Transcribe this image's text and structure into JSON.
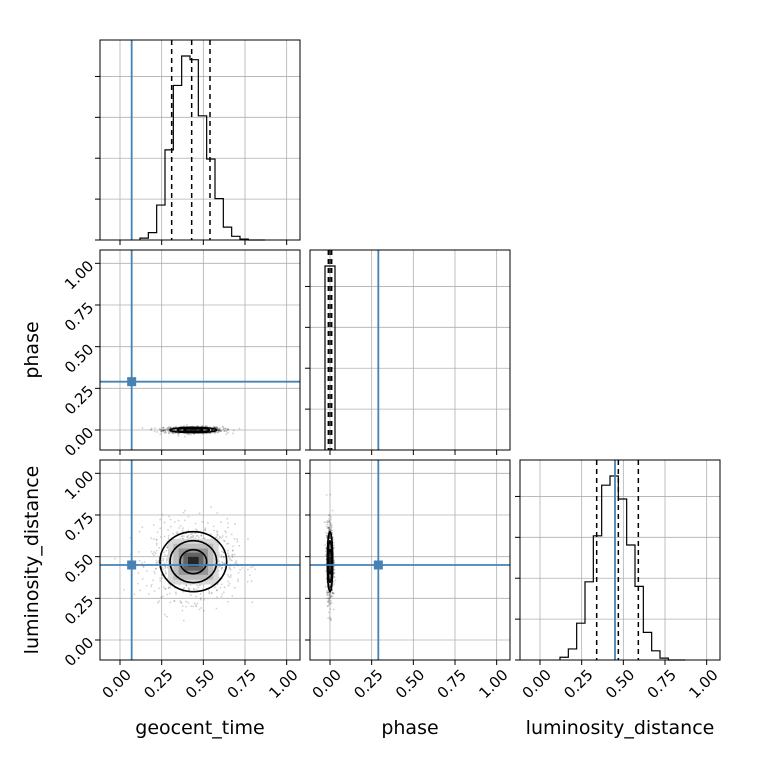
{
  "chart_data": {
    "type": "corner",
    "parameters": [
      "geocent_time",
      "phase",
      "luminosity_distance"
    ],
    "axis_labels": {
      "bottom": [
        "geocent_time",
        "phase",
        "luminosity_distance"
      ],
      "left": [
        "phase",
        "luminosity_distance"
      ]
    },
    "tick_values": [
      0.0,
      0.25,
      0.5,
      0.75,
      1.0
    ],
    "tick_labels": [
      "0.00",
      "0.25",
      "0.50",
      "0.75",
      "1.00"
    ],
    "range": [
      -0.12,
      1.08
    ],
    "truths": {
      "geocent_time": 0.07,
      "phase": 0.29,
      "luminosity_distance": 0.45
    },
    "truth_color": "#4682b4",
    "grid": true,
    "histograms": {
      "geocent_time": {
        "bin_edges": [
          0.12,
          0.17,
          0.22,
          0.27,
          0.32,
          0.37,
          0.42,
          0.47,
          0.52,
          0.57,
          0.62,
          0.67,
          0.72,
          0.77,
          0.82,
          0.87
        ],
        "counts": [
          2,
          8,
          38,
          98,
          168,
          200,
          196,
          135,
          88,
          45,
          14,
          4,
          1,
          0,
          0
        ],
        "quantiles": [
          0.31,
          0.43,
          0.54
        ]
      },
      "phase": {
        "bin_edges": [
          -0.03,
          0.0,
          0.03
        ],
        "counts": [
          200,
          200
        ],
        "quantiles": [
          -0.01,
          0.0,
          0.01
        ]
      },
      "luminosity_distance": {
        "bin_edges": [
          0.12,
          0.17,
          0.22,
          0.27,
          0.32,
          0.37,
          0.42,
          0.47,
          0.52,
          0.57,
          0.62,
          0.67,
          0.72,
          0.77,
          0.82,
          0.87
        ],
        "counts": [
          3,
          12,
          40,
          85,
          135,
          190,
          200,
          175,
          125,
          80,
          30,
          10,
          2,
          0,
          0
        ],
        "quantiles": [
          0.34,
          0.47,
          0.59
        ]
      }
    },
    "joint": [
      {
        "x": "geocent_time",
        "y": "phase",
        "center": [
          0.44,
          0.0
        ],
        "sigma": [
          0.07,
          0.008
        ],
        "corr": 0.0
      },
      {
        "x": "geocent_time",
        "y": "luminosity_distance",
        "center": [
          0.44,
          0.47
        ],
        "sigma": [
          0.1,
          0.09
        ],
        "corr": 0.0
      },
      {
        "x": "phase",
        "y": "luminosity_distance",
        "center": [
          0.0,
          0.47
        ],
        "sigma": [
          0.008,
          0.09
        ],
        "corr": 0.0
      }
    ]
  }
}
